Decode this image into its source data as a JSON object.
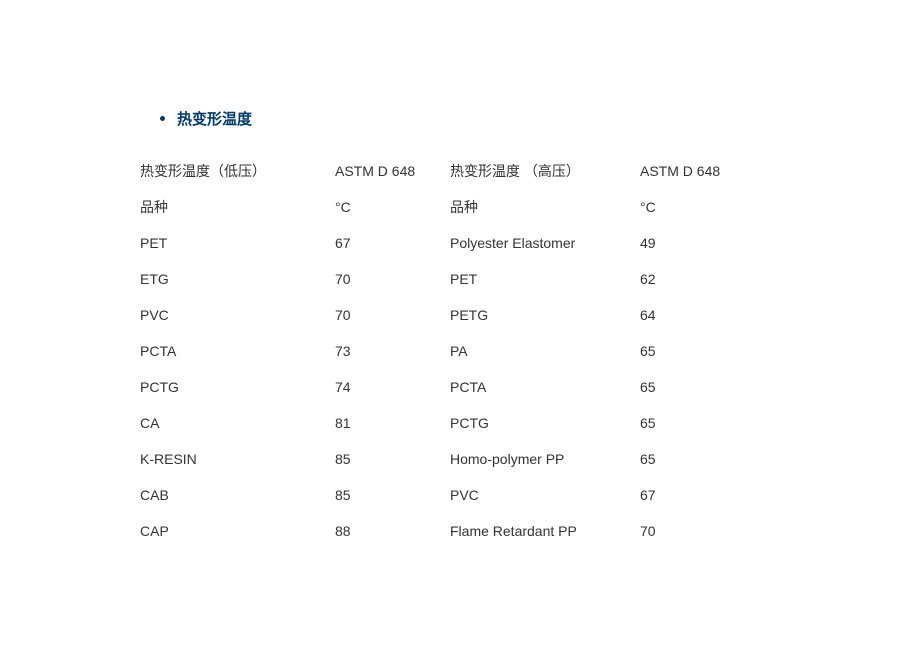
{
  "heading": "热变形温度",
  "header1": {
    "c1": "热变形温度（低压）",
    "c2": "ASTM D 648",
    "c3": "热变形温度 （高压）",
    "c4": "ASTM D 648"
  },
  "header2": {
    "c1": "品种",
    "c2": "°C",
    "c3": "品种",
    "c4": "°C"
  },
  "rows": [
    {
      "c1": "PET",
      "c2": "67",
      "c3": "Polyester Elastomer",
      "c4": "49"
    },
    {
      "c1": "ETG",
      "c2": "70",
      "c3": "PET",
      "c4": "62"
    },
    {
      "c1": "PVC",
      "c2": "70",
      "c3": "PETG",
      "c4": "64"
    },
    {
      "c1": "PCTA",
      "c2": "73",
      "c3": "PA",
      "c4": "65"
    },
    {
      "c1": "PCTG",
      "c2": "74",
      "c3": "PCTA",
      "c4": "65"
    },
    {
      "c1": "CA",
      "c2": "81",
      "c3": "PCTG",
      "c4": "65"
    },
    {
      "c1": "K-RESIN",
      "c2": "85",
      "c3": "Homo-polymer PP",
      "c4": "65"
    },
    {
      "c1": "CAB",
      "c2": "85",
      "c3": "PVC",
      "c4": "67"
    },
    {
      "c1": "CAP",
      "c2": "88",
      "c3": "Flame Retardant PP",
      "c4": "70"
    }
  ]
}
